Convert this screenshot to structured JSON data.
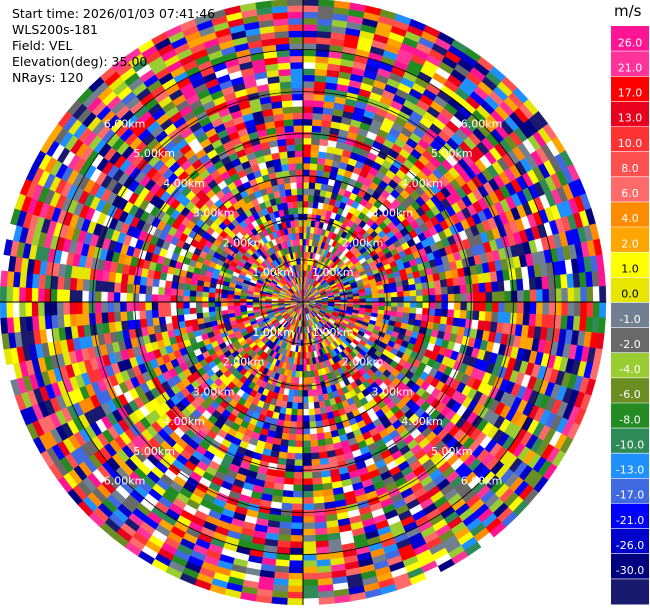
{
  "info": {
    "start_time": "Start time: 2026/01/03 07:41:46",
    "site": "WLS200s-181",
    "field": "Field: VEL",
    "elevation": "Elevation(deg): 35.00",
    "nrays": "NRays: 120"
  },
  "chart_data": {
    "type": "heatmap",
    "projection": "polar (PPI)",
    "field": "VEL",
    "n_rays": 120,
    "range_rings_km": [
      1.0,
      2.0,
      3.0,
      4.0,
      5.0,
      6.0
    ],
    "ring_labels": [
      "1.00km",
      "2.00km",
      "3.00km",
      "4.00km",
      "5.00km",
      "6.00km"
    ],
    "max_range_km": 7.2,
    "range_gates": 48,
    "colorbar": {
      "unit": "m/s",
      "ticks": [
        "26.0",
        "21.0",
        "17.0",
        "13.0",
        "10.0",
        "8.0",
        "6.0",
        "4.0",
        "2.0",
        "1.0",
        "0.0",
        "-1.0",
        "-2.0",
        "-4.0",
        "-6.0",
        "-8.0",
        "-10.0",
        "-13.0",
        "-17.0",
        "-21.0",
        "-26.0",
        "-30.0"
      ],
      "colors": [
        "#ff1493",
        "#ff3399",
        "#ff0000",
        "#e8001c",
        "#ff3333",
        "#ff5050",
        "#ff6a6a",
        "#ff8c00",
        "#ffa500",
        "#ffff00",
        "#e6e600",
        "#708090",
        "#696969",
        "#9acd32",
        "#6b8e23",
        "#228b22",
        "#2e8b57",
        "#1e90ff",
        "#4169e1",
        "#0000ff",
        "#0000cd",
        "#000080",
        "#191970"
      ]
    }
  }
}
